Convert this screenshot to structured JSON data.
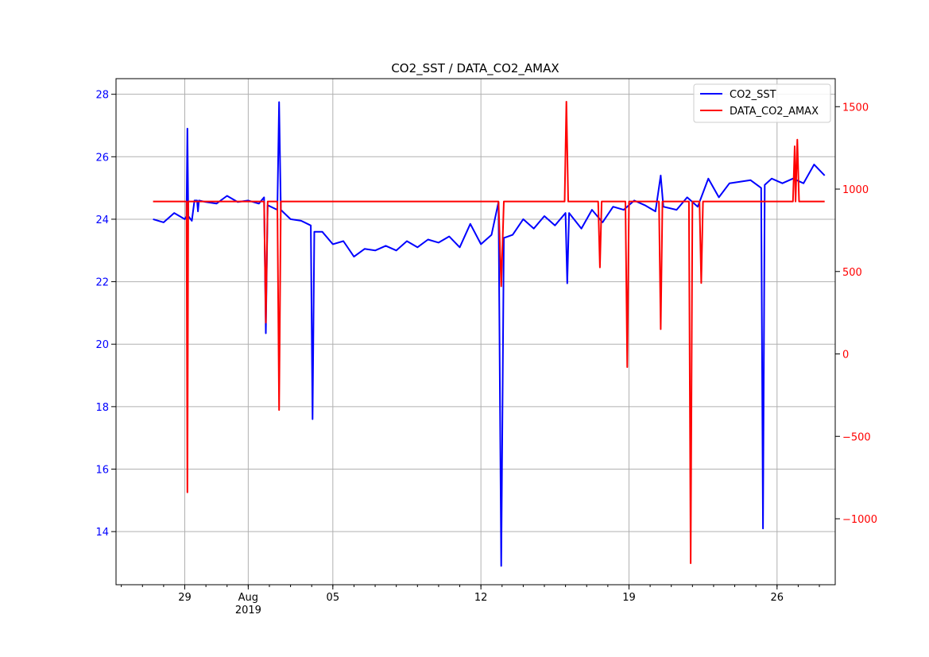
{
  "chart_data": {
    "type": "line",
    "title": "CO2_SST / DATA_CO2_AMAX",
    "xlabel": "",
    "ylabel_left": "",
    "ylabel_right": "",
    "grid": true,
    "legend_position": "top-right",
    "x_range": [
      "2019-07-25T18:00",
      "2019-08-28T18:00"
    ],
    "x_major_ticks": [
      {
        "date": "2019-07-29",
        "label": "29"
      },
      {
        "date": "2019-08-01",
        "label": "Aug",
        "sublabel": "2019"
      },
      {
        "date": "2019-08-05",
        "label": "05"
      },
      {
        "date": "2019-08-12",
        "label": "12"
      },
      {
        "date": "2019-08-19",
        "label": "19"
      },
      {
        "date": "2019-08-26",
        "label": "26"
      }
    ],
    "y_left": {
      "range": [
        12.3,
        28.5
      ],
      "ticks": [
        14,
        16,
        18,
        20,
        22,
        24,
        26,
        28
      ],
      "color": "#0000ff"
    },
    "y_right": {
      "range": [
        -1400,
        1670
      ],
      "ticks": [
        -1000,
        -500,
        0,
        500,
        1000,
        1500
      ],
      "color": "#ff0000"
    },
    "series": [
      {
        "name": "CO2_SST",
        "axis": "left",
        "color": "#0000ff",
        "points": [
          [
            "2019-07-27T12:00",
            24.0
          ],
          [
            "2019-07-28T00:00",
            23.9
          ],
          [
            "2019-07-28T12:00",
            24.2
          ],
          [
            "2019-07-29T00:00",
            24.0
          ],
          [
            "2019-07-29T02:00",
            24.1
          ],
          [
            "2019-07-29T03:00",
            26.9
          ],
          [
            "2019-07-29T04:00",
            24.1
          ],
          [
            "2019-07-29T08:00",
            23.95
          ],
          [
            "2019-07-29T11:00",
            24.6
          ],
          [
            "2019-07-29T14:00",
            24.6
          ],
          [
            "2019-07-29T15:00",
            24.25
          ],
          [
            "2019-07-29T16:00",
            24.6
          ],
          [
            "2019-07-30T00:00",
            24.55
          ],
          [
            "2019-07-30T12:00",
            24.5
          ],
          [
            "2019-07-31T00:00",
            24.75
          ],
          [
            "2019-07-31T12:00",
            24.55
          ],
          [
            "2019-08-01T00:00",
            24.6
          ],
          [
            "2019-08-01T12:00",
            24.5
          ],
          [
            "2019-08-01T18:00",
            24.7
          ],
          [
            "2019-08-01T20:00",
            20.35
          ],
          [
            "2019-08-01T22:00",
            24.45
          ],
          [
            "2019-08-02T09:00",
            24.3
          ],
          [
            "2019-08-02T11:00",
            27.75
          ],
          [
            "2019-08-02T13:00",
            24.3
          ],
          [
            "2019-08-03T00:00",
            24.0
          ],
          [
            "2019-08-03T12:00",
            23.95
          ],
          [
            "2019-08-03T23:00",
            23.8
          ],
          [
            "2019-08-04T01:00",
            17.6
          ],
          [
            "2019-08-04T03:00",
            23.6
          ],
          [
            "2019-08-04T12:00",
            23.6
          ],
          [
            "2019-08-05T00:00",
            23.2
          ],
          [
            "2019-08-05T12:00",
            23.3
          ],
          [
            "2019-08-06T00:00",
            22.8
          ],
          [
            "2019-08-06T12:00",
            23.05
          ],
          [
            "2019-08-07T00:00",
            23.0
          ],
          [
            "2019-08-07T12:00",
            23.15
          ],
          [
            "2019-08-08T00:00",
            23.0
          ],
          [
            "2019-08-08T12:00",
            23.3
          ],
          [
            "2019-08-09T00:00",
            23.1
          ],
          [
            "2019-08-09T12:00",
            23.35
          ],
          [
            "2019-08-10T00:00",
            23.25
          ],
          [
            "2019-08-10T12:00",
            23.45
          ],
          [
            "2019-08-11T00:00",
            23.1
          ],
          [
            "2019-08-11T12:00",
            23.85
          ],
          [
            "2019-08-12T00:00",
            23.2
          ],
          [
            "2019-08-12T12:00",
            23.5
          ],
          [
            "2019-08-12T20:00",
            24.55
          ],
          [
            "2019-08-12T23:00",
            12.9
          ],
          [
            "2019-08-13T02:00",
            23.4
          ],
          [
            "2019-08-13T12:00",
            23.5
          ],
          [
            "2019-08-14T00:00",
            24.0
          ],
          [
            "2019-08-14T12:00",
            23.7
          ],
          [
            "2019-08-15T00:00",
            24.1
          ],
          [
            "2019-08-15T12:00",
            23.8
          ],
          [
            "2019-08-16T00:00",
            24.2
          ],
          [
            "2019-08-16T02:00",
            21.95
          ],
          [
            "2019-08-16T04:00",
            24.2
          ],
          [
            "2019-08-16T18:00",
            23.7
          ],
          [
            "2019-08-17T06:00",
            24.3
          ],
          [
            "2019-08-17T18:00",
            23.9
          ],
          [
            "2019-08-18T06:00",
            24.4
          ],
          [
            "2019-08-18T18:00",
            24.3
          ],
          [
            "2019-08-19T06:00",
            24.6
          ],
          [
            "2019-08-19T18:00",
            24.45
          ],
          [
            "2019-08-20T06:00",
            24.25
          ],
          [
            "2019-08-20T12:00",
            25.4
          ],
          [
            "2019-08-20T15:00",
            24.4
          ],
          [
            "2019-08-21T06:00",
            24.3
          ],
          [
            "2019-08-21T18:00",
            24.7
          ],
          [
            "2019-08-22T06:00",
            24.4
          ],
          [
            "2019-08-22T18:00",
            25.3
          ],
          [
            "2019-08-23T06:00",
            24.7
          ],
          [
            "2019-08-23T18:00",
            25.15
          ],
          [
            "2019-08-24T06:00",
            25.2
          ],
          [
            "2019-08-24T18:00",
            25.25
          ],
          [
            "2019-08-25T06:00",
            25.0
          ],
          [
            "2019-08-25T08:00",
            14.1
          ],
          [
            "2019-08-25T10:00",
            25.1
          ],
          [
            "2019-08-25T18:00",
            25.3
          ],
          [
            "2019-08-26T06:00",
            25.15
          ],
          [
            "2019-08-26T18:00",
            25.3
          ],
          [
            "2019-08-27T06:00",
            25.15
          ],
          [
            "2019-08-27T18:00",
            25.75
          ],
          [
            "2019-08-28T06:00",
            25.4
          ]
        ]
      },
      {
        "name": "DATA_CO2_AMAX",
        "axis": "right",
        "color": "#ff0000",
        "points": [
          [
            "2019-07-27T12:00",
            925
          ],
          [
            "2019-07-29T02:00",
            925
          ],
          [
            "2019-07-29T03:00",
            -840
          ],
          [
            "2019-07-29T04:00",
            925
          ],
          [
            "2019-08-01T18:00",
            925
          ],
          [
            "2019-08-01T20:00",
            190
          ],
          [
            "2019-08-01T22:00",
            925
          ],
          [
            "2019-08-02T09:00",
            925
          ],
          [
            "2019-08-02T11:00",
            -340
          ],
          [
            "2019-08-02T13:00",
            925
          ],
          [
            "2019-08-12T20:00",
            925
          ],
          [
            "2019-08-12T23:00",
            410
          ],
          [
            "2019-08-13T02:00",
            925
          ],
          [
            "2019-08-15T23:00",
            925
          ],
          [
            "2019-08-16T01:00",
            1530
          ],
          [
            "2019-08-16T03:00",
            925
          ],
          [
            "2019-08-17T13:00",
            925
          ],
          [
            "2019-08-17T15:00",
            525
          ],
          [
            "2019-08-17T17:00",
            925
          ],
          [
            "2019-08-18T20:00",
            925
          ],
          [
            "2019-08-18T22:00",
            -80
          ],
          [
            "2019-08-19T00:00",
            925
          ],
          [
            "2019-08-20T10:00",
            925
          ],
          [
            "2019-08-20T12:00",
            150
          ],
          [
            "2019-08-20T14:00",
            925
          ],
          [
            "2019-08-21T20:00",
            925
          ],
          [
            "2019-08-21T22:00",
            -1270
          ],
          [
            "2019-08-22T00:00",
            925
          ],
          [
            "2019-08-22T08:00",
            925
          ],
          [
            "2019-08-22T10:00",
            430
          ],
          [
            "2019-08-22T12:00",
            925
          ],
          [
            "2019-08-26T18:00",
            925
          ],
          [
            "2019-08-26T20:00",
            1260
          ],
          [
            "2019-08-26T21:00",
            925
          ],
          [
            "2019-08-26T23:00",
            1300
          ],
          [
            "2019-08-27T01:00",
            925
          ],
          [
            "2019-08-28T06:00",
            925
          ]
        ]
      }
    ]
  }
}
